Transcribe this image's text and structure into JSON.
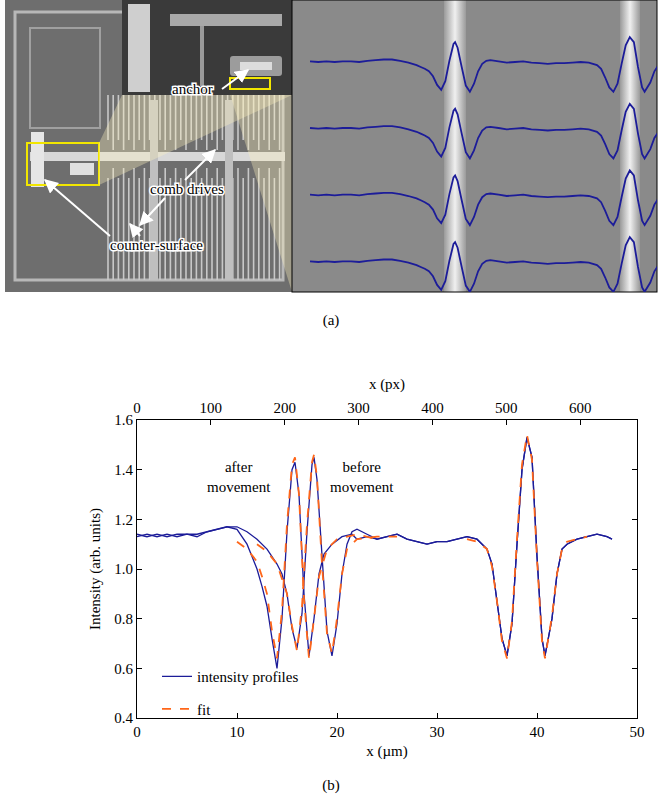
{
  "panel_a": {
    "label": "(a)",
    "labels": [
      "anchor",
      "comb drives",
      "counter-surface"
    ],
    "profile_overlays": 4
  },
  "chart_data": {
    "type": "line",
    "label": "(b)",
    "x_label": "x (µm)",
    "y_label": "Intensity (arb. units)",
    "x2_label": "x (px)",
    "xlim": [
      0,
      50
    ],
    "xticks": [
      0,
      10,
      20,
      30,
      40,
      50
    ],
    "x2lim": [
      0,
      677
    ],
    "x2ticks": [
      0,
      100,
      200,
      300,
      400,
      500,
      600
    ],
    "ylim": [
      0.4,
      1.6
    ],
    "yticks": [
      0.4,
      0.6,
      0.8,
      {
        "value": 1.0,
        "label": "1.0"
      },
      1.2,
      1.4,
      1.6
    ],
    "legend": "bottom",
    "annotations": [
      {
        "text": "after movement",
        "x": 10.2,
        "y": 1.37
      },
      {
        "text": "before movement",
        "x": 22.5,
        "y": 1.37
      }
    ],
    "series": [
      {
        "name": "intensity profiles",
        "color": "#1c1c99",
        "line_style": "solid",
        "x": [
          0,
          1,
          2,
          3,
          4,
          5,
          6,
          7,
          8,
          9,
          10,
          11,
          12,
          13,
          13.5,
          14,
          14.5,
          15,
          15.5,
          16,
          16.5,
          17,
          17.5,
          17.7,
          18,
          18.5,
          19,
          19.5,
          20,
          20.5,
          21,
          21.5,
          22,
          23,
          24,
          25,
          26,
          27,
          28,
          29,
          30,
          31,
          32,
          33,
          34,
          35,
          35.5,
          36,
          36.5,
          37,
          37.5,
          38,
          38.5,
          39,
          39.5,
          40,
          40.5,
          40.8,
          41.5,
          42,
          42.5,
          43,
          44,
          45,
          46,
          47,
          47.5
        ],
        "values": [
          1.14,
          1.13,
          1.14,
          1.13,
          1.14,
          1.14,
          1.13,
          1.15,
          1.16,
          1.17,
          1.17,
          1.15,
          1.12,
          1.08,
          1.05,
          1.02,
          0.98,
          0.9,
          0.76,
          0.68,
          0.82,
          1.15,
          1.42,
          1.45,
          1.36,
          1.05,
          0.75,
          0.65,
          0.78,
          0.98,
          1.1,
          1.15,
          1.16,
          1.14,
          1.12,
          1.13,
          1.14,
          1.12,
          1.11,
          1.1,
          1.11,
          1.11,
          1.12,
          1.13,
          1.12,
          1.08,
          1.02,
          0.88,
          0.72,
          0.65,
          0.78,
          1.1,
          1.4,
          1.53,
          1.45,
          1.05,
          0.72,
          0.65,
          0.8,
          0.98,
          1.08,
          1.1,
          1.12,
          1.13,
          1.14,
          1.13,
          1.12
        ]
      },
      {
        "name": "intensity profiles",
        "color": "#1c1c99",
        "line_style": "solid",
        "x": [
          0,
          1,
          2,
          3,
          4,
          5,
          6,
          7,
          8,
          9,
          10,
          11,
          11.5,
          12,
          12.5,
          13,
          13.5,
          14,
          14.5,
          15,
          15.5,
          15.8,
          16.2,
          16.7,
          17.2,
          17.7,
          18.2,
          18.7,
          19.5,
          20.5,
          21.5,
          22,
          23,
          24,
          25,
          26,
          27,
          28,
          29,
          30,
          31,
          32,
          33,
          34,
          35,
          35.5,
          36,
          36.5,
          37,
          37.5,
          38,
          38.5,
          39,
          39.5,
          40,
          40.5,
          40.8,
          41.5,
          42,
          42.5,
          43,
          44,
          45,
          46,
          47,
          47.5
        ],
        "values": [
          1.13,
          1.14,
          1.13,
          1.14,
          1.13,
          1.14,
          1.14,
          1.15,
          1.16,
          1.17,
          1.16,
          1.1,
          1.05,
          1.0,
          0.93,
          0.85,
          0.72,
          0.6,
          0.8,
          1.15,
          1.4,
          1.43,
          1.3,
          0.9,
          0.65,
          0.8,
          0.98,
          1.06,
          1.1,
          1.13,
          1.14,
          1.12,
          1.13,
          1.12,
          1.13,
          1.14,
          1.12,
          1.11,
          1.1,
          1.11,
          1.11,
          1.12,
          1.13,
          1.12,
          1.08,
          1.02,
          0.88,
          0.72,
          0.65,
          0.78,
          1.1,
          1.4,
          1.53,
          1.45,
          1.05,
          0.72,
          0.65,
          0.8,
          0.98,
          1.08,
          1.1,
          1.12,
          1.13,
          1.14,
          1.13,
          1.12
        ]
      },
      {
        "name": "fit",
        "color": "#ff6619",
        "line_style": "dashed",
        "x": [
          12,
          13,
          14,
          15,
          15.5,
          16,
          16.5,
          17,
          17.5,
          17.7,
          18,
          18.5,
          19,
          19.5,
          20,
          20.5,
          21,
          22,
          24,
          26
        ],
        "values": [
          1.1,
          1.07,
          1.02,
          0.9,
          0.77,
          0.67,
          0.85,
          1.18,
          1.43,
          1.46,
          1.37,
          1.02,
          0.74,
          0.66,
          0.8,
          0.98,
          1.08,
          1.12,
          1.13,
          1.13
        ]
      },
      {
        "name": "fit",
        "color": "#ff6619",
        "line_style": "dashed",
        "x": [
          10,
          11,
          12,
          12.5,
          13,
          13.5,
          14,
          14.5,
          15,
          15.5,
          15.8,
          16.2,
          16.7,
          17.2,
          17.7,
          18.2,
          19,
          20,
          22,
          24
        ],
        "values": [
          1.11,
          1.08,
          1.03,
          0.97,
          0.9,
          0.75,
          0.64,
          0.83,
          1.18,
          1.42,
          1.45,
          1.3,
          0.88,
          0.64,
          0.8,
          0.97,
          1.08,
          1.12,
          1.14,
          1.12
        ]
      },
      {
        "name": "fit",
        "color": "#ff6619",
        "line_style": "dashed",
        "x": [
          33,
          34,
          35,
          35.5,
          36,
          36.5,
          37,
          37.5,
          38,
          38.5,
          39,
          39.5,
          40,
          40.5,
          40.8,
          41.5,
          42,
          42.5,
          43,
          44,
          45
        ],
        "values": [
          1.12,
          1.11,
          1.08,
          1.01,
          0.87,
          0.71,
          0.64,
          0.79,
          1.12,
          1.42,
          1.54,
          1.44,
          1.04,
          0.71,
          0.64,
          0.81,
          0.98,
          1.08,
          1.11,
          1.12,
          1.13
        ]
      }
    ]
  }
}
